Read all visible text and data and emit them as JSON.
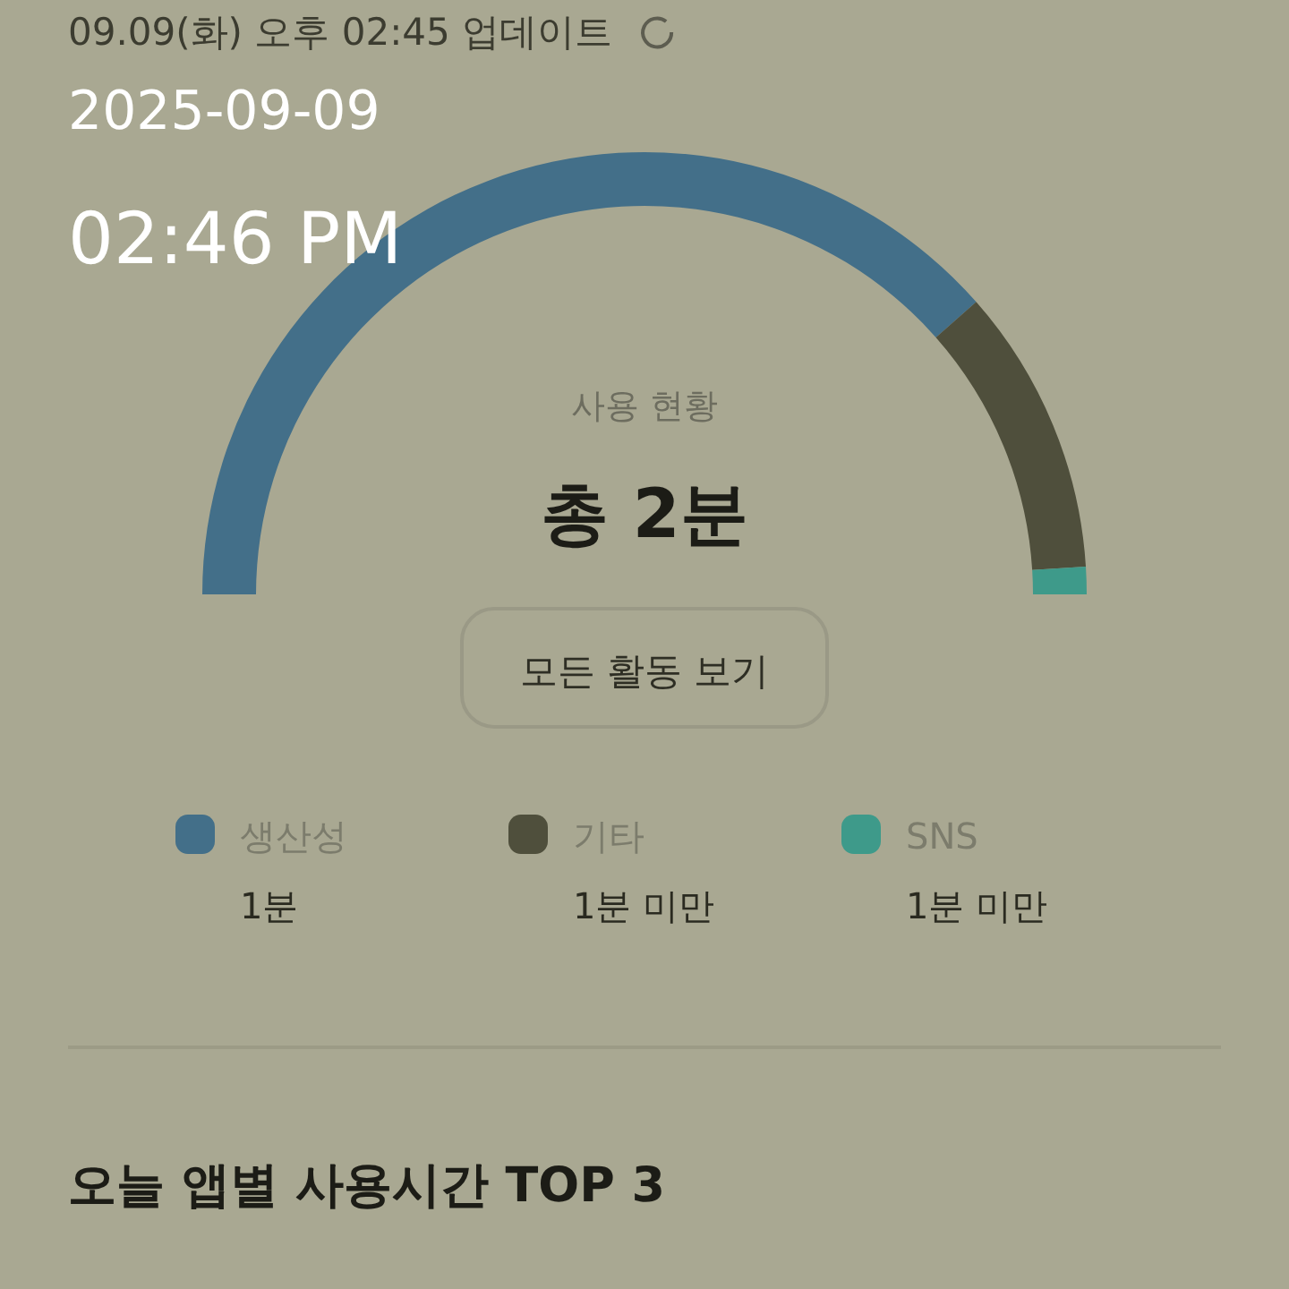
{
  "chart_data": {
    "type": "donut",
    "title": "총 2분",
    "subtitle": "사용 현황",
    "categories": [
      "생산성",
      "기타",
      "SNS"
    ],
    "values": [
      77,
      21,
      2
    ],
    "colors": [
      "#436f89",
      "#4f4f3c",
      "#3e9a8a"
    ],
    "legend": "bottom",
    "annotations": [
      "09.09(화) 오후 02:45 업데이트",
      "2025-09-09",
      "02:46 PM",
      "모든 활동 보기",
      "오늘 앱별 사용시간 TOP 3",
      "1분",
      "1분 미만",
      "1분 미만"
    ]
  }
}
